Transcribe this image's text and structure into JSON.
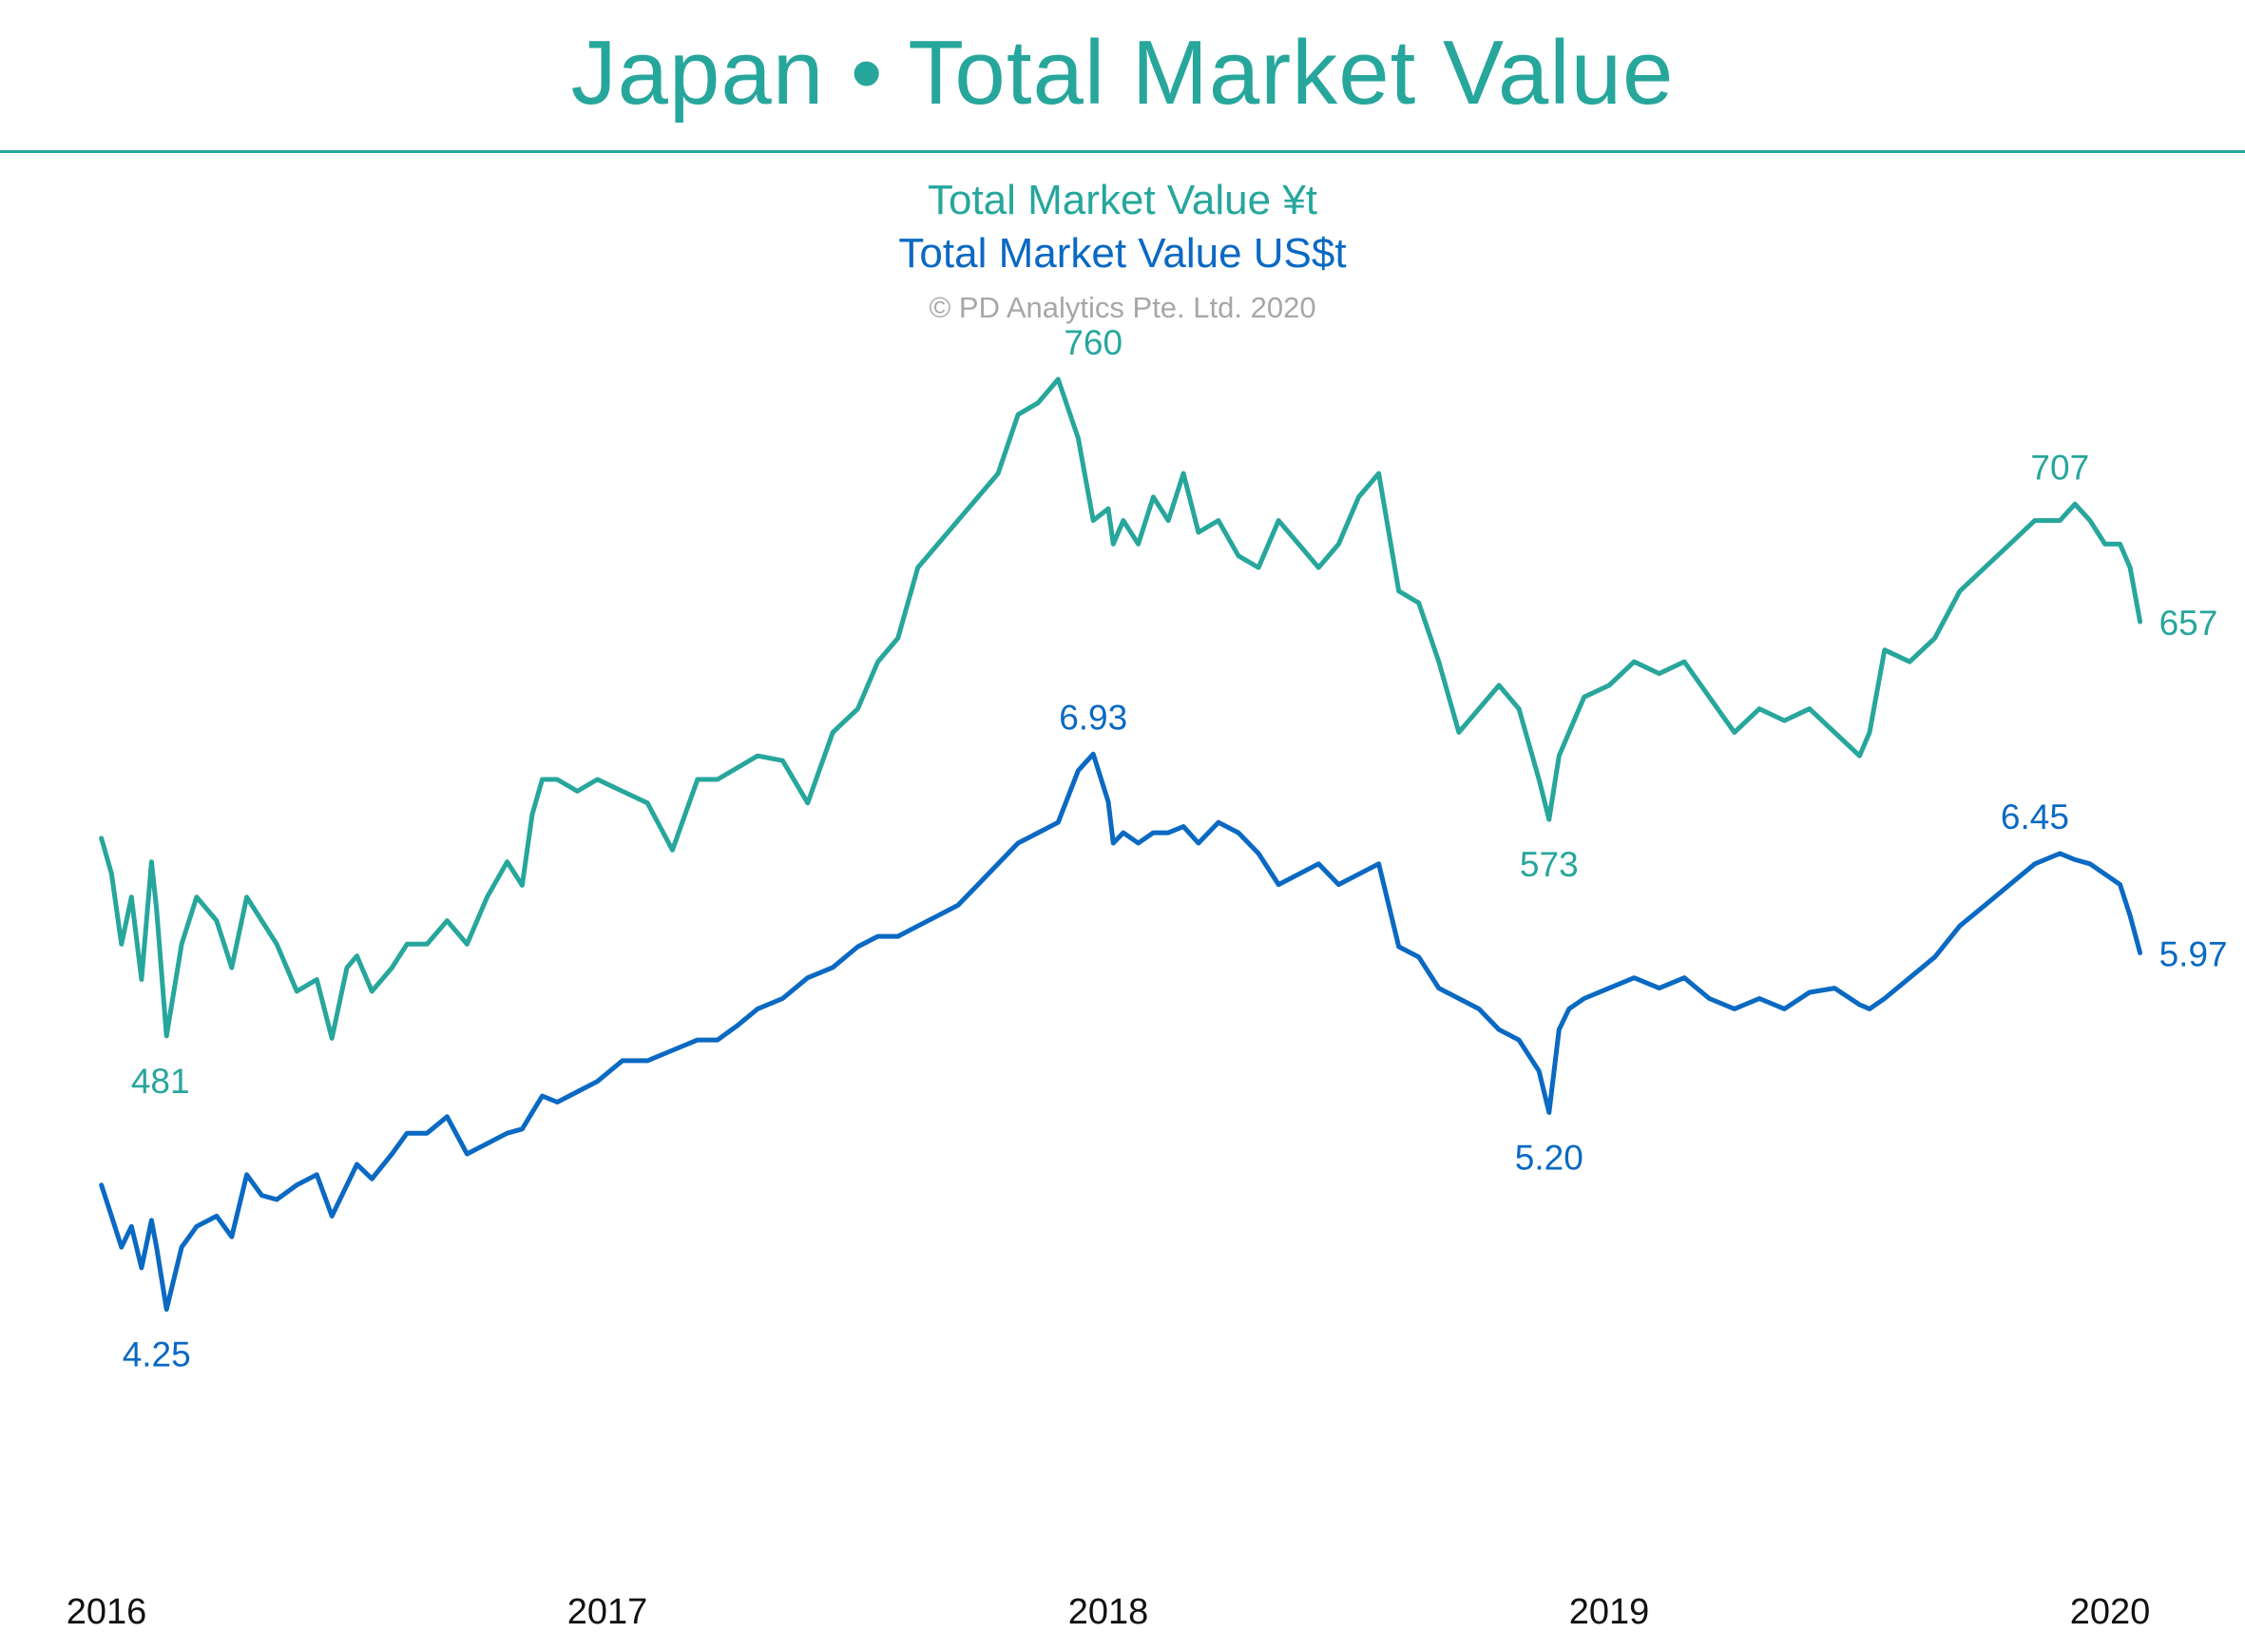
{
  "header": {
    "title": "Japan • Total Market Value",
    "legend_yen": "Total Market Value ¥t",
    "legend_usd": "Total Market Value US$t",
    "copyright": "© PD Analytics Pte. Ltd. 2020"
  },
  "colors": {
    "yen": "#27a69c",
    "usd": "#0a69c2",
    "title": "#27a69c"
  },
  "chart_data": {
    "type": "line",
    "title": "Japan • Total Market Value",
    "x_ticks": [
      "2016",
      "2017",
      "2018",
      "2019",
      "2020"
    ],
    "x_tick_values": [
      2016.0,
      2017.0,
      2018.0,
      2019.0,
      2020.0
    ],
    "xlim": [
      2016.0,
      2020.0
    ],
    "grid": false,
    "legend": "top-center",
    "series": [
      {
        "name": "Total Market Value ¥t",
        "axis": "yen",
        "ylim": [
          380,
          800
        ],
        "x": [
          2015.99,
          2016.01,
          2016.03,
          2016.05,
          2016.07,
          2016.09,
          2016.1,
          2016.12,
          2016.15,
          2016.18,
          2016.22,
          2016.25,
          2016.28,
          2016.31,
          2016.34,
          2016.38,
          2016.42,
          2016.45,
          2016.48,
          2016.5,
          2016.53,
          2016.57,
          2016.6,
          2016.64,
          2016.68,
          2016.72,
          2016.76,
          2016.8,
          2016.83,
          2016.85,
          2016.87,
          2016.9,
          2016.94,
          2016.98,
          2017.03,
          2017.08,
          2017.13,
          2017.18,
          2017.22,
          2017.26,
          2017.3,
          2017.35,
          2017.4,
          2017.45,
          2017.5,
          2017.54,
          2017.58,
          2017.62,
          2017.66,
          2017.7,
          2017.74,
          2017.78,
          2017.82,
          2017.86,
          2017.9,
          2017.94,
          2017.97,
          2018.0,
          2018.01,
          2018.03,
          2018.06,
          2018.09,
          2018.12,
          2018.15,
          2018.18,
          2018.22,
          2018.26,
          2018.3,
          2018.34,
          2018.38,
          2018.42,
          2018.46,
          2018.5,
          2018.54,
          2018.58,
          2018.62,
          2018.66,
          2018.7,
          2018.74,
          2018.78,
          2018.82,
          2018.86,
          2018.88,
          2018.9,
          2018.92,
          2018.95,
          2019.0,
          2019.05,
          2019.1,
          2019.15,
          2019.2,
          2019.25,
          2019.3,
          2019.35,
          2019.4,
          2019.45,
          2019.5,
          2019.52,
          2019.55,
          2019.6,
          2019.65,
          2019.7,
          2019.75,
          2019.8,
          2019.85,
          2019.9,
          2019.93,
          2019.96,
          2019.99,
          2020.02,
          2020.04,
          2020.06
        ],
        "values": [
          565,
          550,
          520,
          540,
          505,
          555,
          535,
          481,
          520,
          540,
          530,
          510,
          540,
          530,
          520,
          500,
          505,
          480,
          510,
          515,
          500,
          510,
          520,
          520,
          530,
          520,
          540,
          555,
          545,
          575,
          590,
          590,
          585,
          590,
          585,
          580,
          560,
          590,
          590,
          595,
          600,
          598,
          580,
          610,
          620,
          640,
          650,
          680,
          690,
          700,
          710,
          720,
          745,
          750,
          760,
          735,
          700,
          705,
          690,
          700,
          690,
          710,
          700,
          720,
          695,
          700,
          685,
          680,
          700,
          690,
          680,
          690,
          710,
          720,
          670,
          665,
          640,
          610,
          620,
          630,
          620,
          590,
          573,
          600,
          610,
          625,
          630,
          640,
          635,
          640,
          625,
          610,
          620,
          615,
          620,
          610,
          600,
          610,
          645,
          640,
          650,
          670,
          680,
          690,
          700,
          700,
          707,
          700,
          690,
          690,
          680,
          657
        ]
      },
      {
        "name": "Total Market Value US$t",
        "axis": "usd",
        "ylim": [
          3.0,
          8.0
        ],
        "x": [
          2015.99,
          2016.01,
          2016.03,
          2016.05,
          2016.07,
          2016.09,
          2016.1,
          2016.12,
          2016.15,
          2016.18,
          2016.22,
          2016.25,
          2016.28,
          2016.31,
          2016.34,
          2016.38,
          2016.42,
          2016.45,
          2016.48,
          2016.5,
          2016.53,
          2016.57,
          2016.6,
          2016.64,
          2016.68,
          2016.72,
          2016.76,
          2016.8,
          2016.83,
          2016.85,
          2016.87,
          2016.9,
          2016.94,
          2016.98,
          2017.03,
          2017.08,
          2017.13,
          2017.18,
          2017.22,
          2017.26,
          2017.3,
          2017.35,
          2017.4,
          2017.45,
          2017.5,
          2017.54,
          2017.58,
          2017.62,
          2017.66,
          2017.7,
          2017.74,
          2017.78,
          2017.82,
          2017.86,
          2017.9,
          2017.94,
          2017.97,
          2018.0,
          2018.01,
          2018.03,
          2018.06,
          2018.09,
          2018.12,
          2018.15,
          2018.18,
          2018.22,
          2018.26,
          2018.3,
          2018.34,
          2018.38,
          2018.42,
          2018.46,
          2018.5,
          2018.54,
          2018.58,
          2018.62,
          2018.66,
          2018.7,
          2018.74,
          2018.78,
          2018.82,
          2018.86,
          2018.88,
          2018.9,
          2018.92,
          2018.95,
          2019.0,
          2019.05,
          2019.1,
          2019.15,
          2019.2,
          2019.25,
          2019.3,
          2019.35,
          2019.4,
          2019.45,
          2019.5,
          2019.52,
          2019.55,
          2019.6,
          2019.65,
          2019.7,
          2019.75,
          2019.8,
          2019.85,
          2019.9,
          2019.93,
          2019.96,
          2019.99,
          2020.02,
          2020.04,
          2020.06
        ],
        "values": [
          4.85,
          4.7,
          4.55,
          4.65,
          4.45,
          4.68,
          4.55,
          4.25,
          4.55,
          4.65,
          4.7,
          4.6,
          4.9,
          4.8,
          4.78,
          4.85,
          4.9,
          4.7,
          4.85,
          4.95,
          4.88,
          5.0,
          5.1,
          5.1,
          5.18,
          5.0,
          5.05,
          5.1,
          5.12,
          5.2,
          5.28,
          5.25,
          5.3,
          5.35,
          5.45,
          5.45,
          5.5,
          5.55,
          5.55,
          5.62,
          5.7,
          5.75,
          5.85,
          5.9,
          6.0,
          6.05,
          6.05,
          6.1,
          6.15,
          6.2,
          6.3,
          6.4,
          6.5,
          6.55,
          6.6,
          6.85,
          6.93,
          6.7,
          6.5,
          6.55,
          6.5,
          6.55,
          6.55,
          6.58,
          6.5,
          6.6,
          6.55,
          6.45,
          6.3,
          6.35,
          6.4,
          6.3,
          6.35,
          6.4,
          6.0,
          5.95,
          5.8,
          5.75,
          5.7,
          5.6,
          5.55,
          5.4,
          5.2,
          5.6,
          5.7,
          5.75,
          5.8,
          5.85,
          5.8,
          5.85,
          5.75,
          5.7,
          5.75,
          5.7,
          5.78,
          5.8,
          5.72,
          5.7,
          5.75,
          5.85,
          5.95,
          6.1,
          6.2,
          6.3,
          6.4,
          6.45,
          6.42,
          6.4,
          6.35,
          6.3,
          6.15,
          5.97
        ]
      }
    ],
    "annotations": [
      {
        "series": 0,
        "text": "760",
        "x": 2017.97,
        "value": 760,
        "pos": "above"
      },
      {
        "series": 0,
        "text": "481",
        "x": 2016.1,
        "value": 481,
        "pos": "below-right"
      },
      {
        "series": 0,
        "text": "573",
        "x": 2018.88,
        "value": 573,
        "pos": "below"
      },
      {
        "series": 0,
        "text": "707",
        "x": 2019.9,
        "value": 707,
        "pos": "above"
      },
      {
        "series": 0,
        "text": "657",
        "x": 2020.06,
        "value": 657,
        "pos": "right"
      },
      {
        "series": 1,
        "text": "6.93",
        "x": 2017.97,
        "value": 6.93,
        "pos": "above"
      },
      {
        "series": 1,
        "text": "4.25",
        "x": 2016.1,
        "value": 4.25,
        "pos": "below"
      },
      {
        "series": 1,
        "text": "5.20",
        "x": 2018.88,
        "value": 5.2,
        "pos": "below"
      },
      {
        "series": 1,
        "text": "6.45",
        "x": 2019.85,
        "value": 6.45,
        "pos": "above"
      },
      {
        "series": 1,
        "text": "5.97",
        "x": 2020.06,
        "value": 5.97,
        "pos": "right"
      }
    ]
  }
}
